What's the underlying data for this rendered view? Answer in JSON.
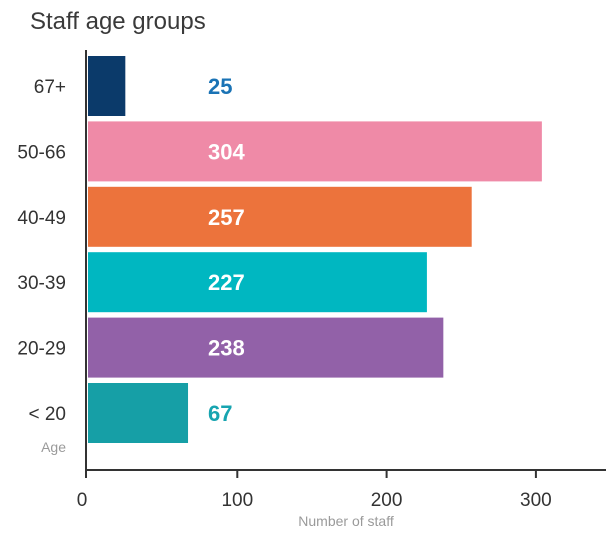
{
  "chart_data": {
    "type": "bar",
    "orientation": "horizontal",
    "title": "Staff age groups",
    "categories": [
      "67+",
      "50-66",
      "40-49",
      "30-39",
      "20-29",
      "< 20"
    ],
    "values": [
      25,
      304,
      257,
      227,
      238,
      67
    ],
    "bar_colors": [
      "#0b3a6a",
      "#ef8aa7",
      "#ec733c",
      "#00b7c1",
      "#9261a8",
      "#169fa6"
    ],
    "value_label_colors": [
      "#1a73b5",
      "#ffffff",
      "#ffffff",
      "#ffffff",
      "#ffffff",
      "#17a4b0"
    ],
    "xlabel": "Number of staff",
    "ylabel": "Age",
    "xlim": [
      0,
      350
    ],
    "xticks": [
      0,
      100,
      200,
      300
    ],
    "grid": false,
    "legend": "none"
  }
}
